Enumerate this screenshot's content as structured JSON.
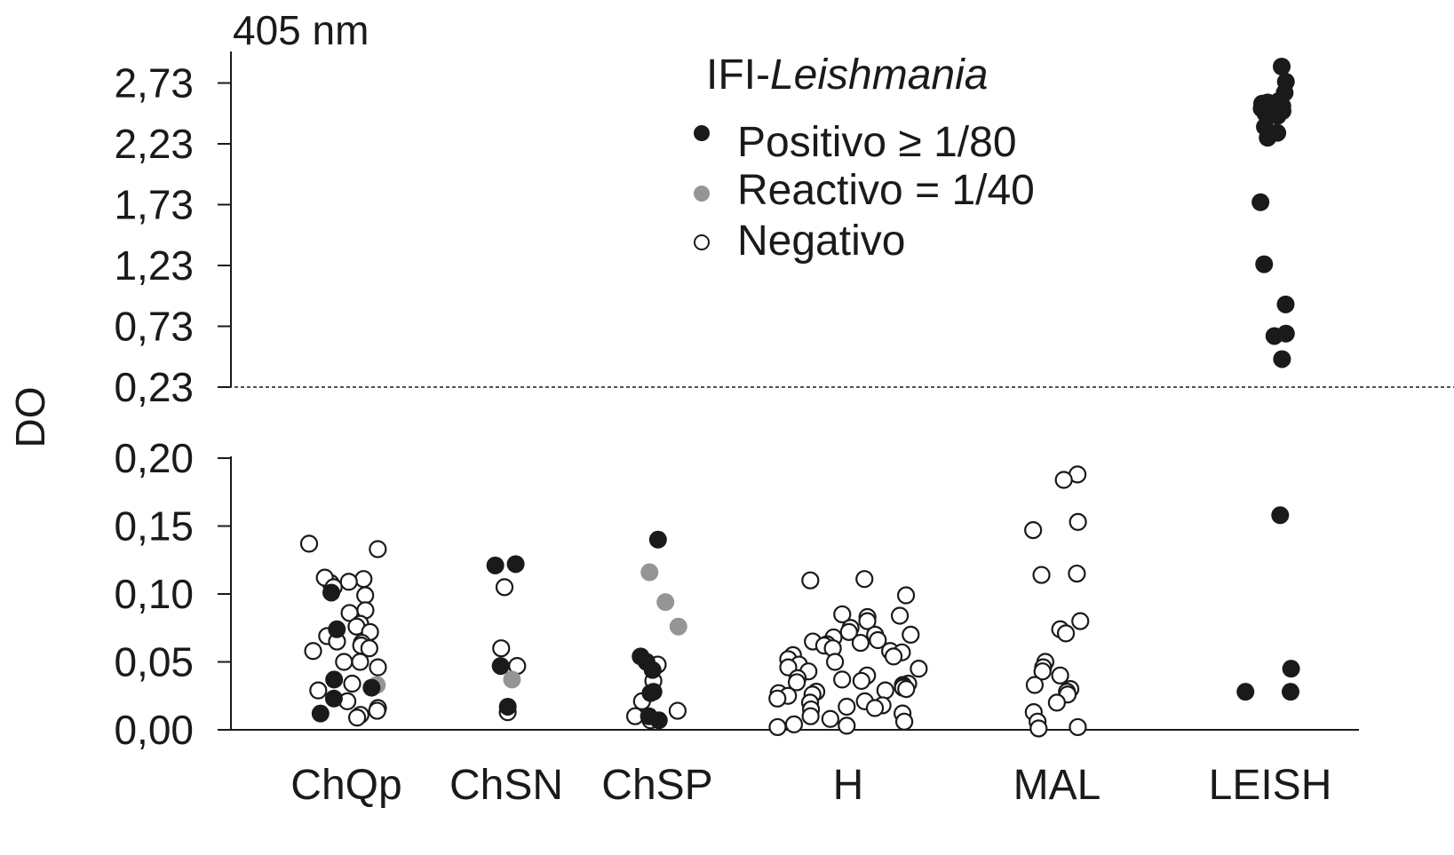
{
  "chart_data": {
    "type": "scatter",
    "title": "",
    "unit_label": "405 nm",
    "ylabel": "DO",
    "xlabel": "",
    "categories": [
      "ChQp",
      "ChSN",
      "ChSP",
      "H",
      "MAL",
      "LEISH"
    ],
    "upper_axis": {
      "ticks": [
        "2,73",
        "2,23",
        "1,73",
        "1,23",
        "0,73",
        "0,23"
      ],
      "tick_values": [
        2.73,
        2.23,
        1.73,
        1.23,
        0.73,
        0.23
      ],
      "ylim": [
        0.23,
        2.95
      ]
    },
    "lower_axis": {
      "ticks": [
        "0,20",
        "0,15",
        "0,10",
        "0,05",
        "0,00"
      ],
      "tick_values": [
        0.2,
        0.15,
        0.1,
        0.05,
        0.0
      ],
      "ylim": [
        0,
        0.2
      ]
    },
    "cutoff_line": 0.23,
    "legend": {
      "title_prefix": "IFI-",
      "title_italic": "Leishmania",
      "placement": "top-center",
      "items": [
        {
          "key": "pos",
          "label": "Positivo ≥ 1/80",
          "color": "#1a1a1a"
        },
        {
          "key": "rea",
          "label": "Reactivo = 1/40",
          "color": "#959595"
        },
        {
          "key": "neg",
          "label": "Negativo",
          "color": "#ffffff"
        }
      ]
    },
    "series": [
      {
        "category": "ChQp",
        "neg": [
          0.137,
          0.133,
          0.108,
          0.112,
          0.111,
          0.109,
          0.105,
          0.099,
          0.088,
          0.086,
          0.078,
          0.076,
          0.072,
          0.069,
          0.065,
          0.064,
          0.062,
          0.058,
          0.05,
          0.05,
          0.046,
          0.06,
          0.029,
          0.021,
          0.016,
          0.011,
          0.009,
          0.034,
          0.014
        ],
        "pos": [
          0.074,
          0.037,
          0.031,
          0.023,
          0.012,
          0.101
        ],
        "rea": [
          0.033
        ]
      },
      {
        "category": "ChSN",
        "neg": [
          0.105,
          0.06,
          0.047,
          0.013
        ],
        "pos": [
          0.122,
          0.121,
          0.047,
          0.017
        ],
        "rea": [
          0.037
        ]
      },
      {
        "category": "ChSP",
        "neg": [
          0.048,
          0.036,
          0.021,
          0.014,
          0.01,
          0.007
        ],
        "pos": [
          0.14,
          0.054,
          0.044,
          0.05,
          0.027,
          0.028,
          0.01,
          0.007
        ],
        "rea": [
          0.116,
          0.094,
          0.076
        ]
      },
      {
        "category": "H",
        "neg": [
          0.111,
          0.11,
          0.099,
          0.085,
          0.084,
          0.083,
          0.08,
          0.075,
          0.072,
          0.07,
          0.07,
          0.068,
          0.066,
          0.065,
          0.064,
          0.063,
          0.062,
          0.06,
          0.058,
          0.057,
          0.055,
          0.054,
          0.052,
          0.05,
          0.048,
          0.046,
          0.045,
          0.043,
          0.04,
          0.038,
          0.037,
          0.036,
          0.035,
          0.034,
          0.033,
          0.032,
          0.031,
          0.03,
          0.029,
          0.028,
          0.027,
          0.026,
          0.025,
          0.023,
          0.021,
          0.02,
          0.018,
          0.017,
          0.016,
          0.015,
          0.012,
          0.01,
          0.008,
          0.006,
          0.004,
          0.003,
          0.002
        ],
        "pos": [],
        "rea": []
      },
      {
        "category": "MAL",
        "neg": [
          0.188,
          0.184,
          0.153,
          0.147,
          0.115,
          0.114,
          0.08,
          0.074,
          0.071,
          0.05,
          0.046,
          0.043,
          0.04,
          0.033,
          0.03,
          0.028,
          0.026,
          0.02,
          0.013,
          0.006,
          0.002,
          0.001
        ],
        "pos": [],
        "rea": []
      },
      {
        "category": "LEISH",
        "neg": [],
        "pos": [
          0.158,
          0.045,
          0.028,
          0.028,
          2.865,
          2.74,
          2.65,
          2.58,
          2.57,
          2.56,
          2.55,
          2.54,
          2.53,
          2.52,
          2.51,
          2.5,
          2.49,
          2.48,
          2.47,
          2.46,
          2.37,
          2.32,
          2.28,
          1.75,
          1.24,
          0.91,
          0.67,
          0.65,
          0.46
        ],
        "rea": []
      }
    ]
  }
}
